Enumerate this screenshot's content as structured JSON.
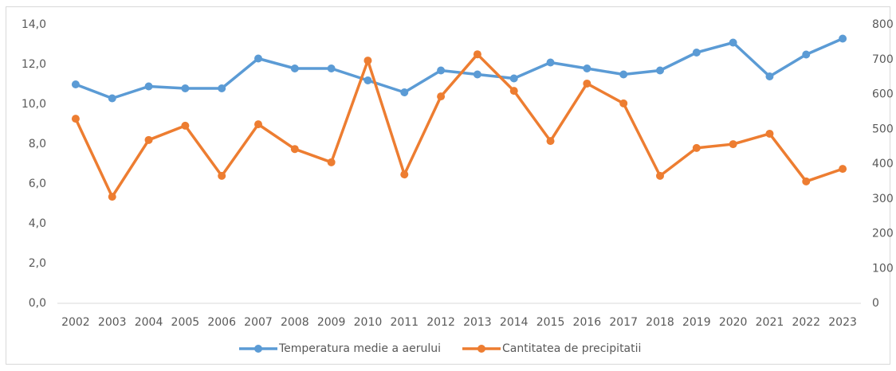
{
  "chart_data": {
    "type": "line",
    "categories": [
      "2002",
      "2003",
      "2004",
      "2005",
      "2006",
      "2007",
      "2008",
      "2009",
      "2010",
      "2011",
      "2012",
      "2013",
      "2014",
      "2015",
      "2016",
      "2017",
      "2018",
      "2019",
      "2020",
      "2021",
      "2022",
      "2023"
    ],
    "series": [
      {
        "name": "Temperatura medie a aerului",
        "color": "#5b9bd5",
        "values": [
          11.0,
          10.3,
          10.9,
          10.8,
          10.8,
          12.3,
          11.8,
          11.8,
          11.2,
          10.6,
          11.7,
          11.5,
          11.3,
          12.1,
          11.8,
          11.5,
          11.7,
          12.6,
          13.1,
          11.4,
          12.5,
          13.3
        ]
      },
      {
        "name": "Cantitatea de precipitatii",
        "color": "#ed7d31",
        "axis": "y2",
        "values": [
          530,
          306,
          469,
          510,
          366,
          514,
          443,
          405,
          697,
          370,
          594,
          715,
          610,
          466,
          631,
          574,
          366,
          446,
          457,
          487,
          350,
          386
        ]
      }
    ],
    "ylim": [
      0,
      14
    ],
    "yticks": [
      {
        "value": 0,
        "label": "0,0"
      },
      {
        "value": 2,
        "label": "2,0"
      },
      {
        "value": 4,
        "label": "4,0"
      },
      {
        "value": 6,
        "label": "6,0"
      },
      {
        "value": 8,
        "label": "8,0"
      },
      {
        "value": 10,
        "label": "10,0"
      },
      {
        "value": 12,
        "label": "12,0"
      },
      {
        "value": 14,
        "label": "14,0"
      }
    ],
    "y2lim": [
      0,
      800
    ],
    "y2ticks": [
      0,
      100,
      200,
      300,
      400,
      500,
      600,
      700,
      800
    ],
    "grid": false,
    "legend": "bottom"
  }
}
